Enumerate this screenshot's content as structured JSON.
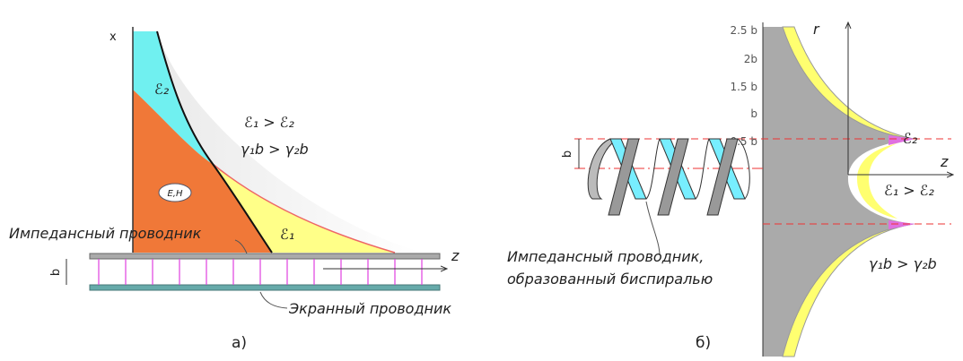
{
  "panel_a": {
    "axis_x": "x",
    "axis_z": "z",
    "eps2": "ℰ₂",
    "eps1": "ℰ₁",
    "eps_relation": "ℰ₁ > ℰ₂",
    "gamma_relation": "γ₁b > γ₂b",
    "field": "E,H",
    "impedance_label": "Импедансный проводник",
    "gap": "b",
    "screen_label": "Экранный проводник",
    "caption": "а)"
  },
  "panel_b": {
    "ticks": [
      "2.5 b",
      "2b",
      "1.5 b",
      "b",
      "0.5 b"
    ],
    "axis_r": "r",
    "axis_z": "z",
    "gap": "b",
    "eps2": "ℰ₂",
    "eps_relation": "ℰ₁ > ℰ₂",
    "gamma_relation": "γ₁b > γ₂b",
    "conductor_label": [
      "Импедансный проводник,",
      "образованный биспиралью"
    ],
    "caption": "б)"
  }
}
